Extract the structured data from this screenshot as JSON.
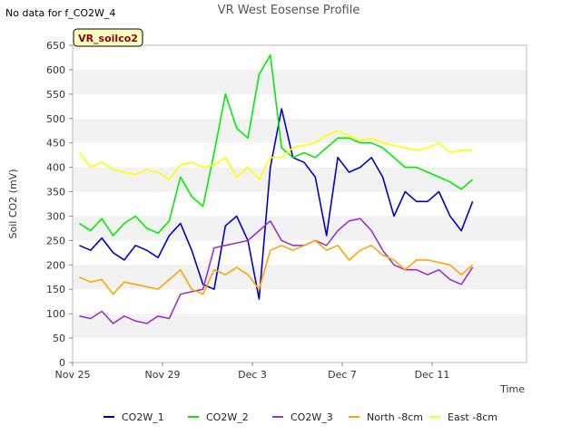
{
  "header": {
    "title": "VR West Eosense Profile",
    "note": "No data for f_CO2W_4",
    "tag": "VR_soilco2"
  },
  "chart_data": {
    "type": "line",
    "title": "VR West Eosense Profile",
    "xlabel": "Time",
    "ylabel": "Soil CO2 (mV)",
    "xlim": [
      0,
      20.2
    ],
    "ylim": [
      0,
      650
    ],
    "x_ticks": [
      {
        "label": "Nov 25",
        "day": 0
      },
      {
        "label": "Nov 29",
        "day": 4
      },
      {
        "label": "Dec 3",
        "day": 8
      },
      {
        "label": "Dec 7",
        "day": 12
      },
      {
        "label": "Dec 11",
        "day": 16
      }
    ],
    "y_ticks": [
      0,
      50,
      100,
      150,
      200,
      250,
      300,
      350,
      400,
      450,
      500,
      550,
      600,
      650
    ],
    "grid": "horizontal banded",
    "legend_position": "bottom",
    "x": [
      0.3,
      0.8,
      1.3,
      1.8,
      2.3,
      2.8,
      3.3,
      3.8,
      4.3,
      4.8,
      5.3,
      5.8,
      6.3,
      6.8,
      7.3,
      7.8,
      8.3,
      8.8,
      9.3,
      9.8,
      10.3,
      10.8,
      11.3,
      11.8,
      12.3,
      12.8,
      13.3,
      13.8,
      14.3,
      14.8,
      15.3,
      15.8,
      16.3,
      16.8,
      17.3,
      17.8
    ],
    "series": [
      {
        "name": "CO2W_1",
        "color": "#0000cc",
        "values": [
          240,
          230,
          255,
          225,
          210,
          240,
          230,
          215,
          260,
          285,
          230,
          160,
          150,
          280,
          300,
          250,
          130,
          400,
          520,
          420,
          410,
          380,
          260,
          420,
          390,
          400,
          420,
          380,
          300,
          350,
          330,
          330,
          350,
          300,
          270,
          330
        ]
      },
      {
        "name": "CO2W_2",
        "color": "#00ee00",
        "values": [
          285,
          270,
          295,
          260,
          285,
          300,
          275,
          265,
          290,
          380,
          340,
          320,
          430,
          550,
          480,
          460,
          590,
          630,
          440,
          420,
          430,
          420,
          440,
          460,
          460,
          450,
          450,
          440,
          420,
          400,
          400,
          390,
          380,
          370,
          355,
          375
        ]
      },
      {
        "name": "CO2W_3",
        "color": "#9933cc",
        "values": [
          95,
          90,
          105,
          80,
          95,
          85,
          80,
          95,
          90,
          140,
          145,
          150,
          235,
          240,
          245,
          250,
          270,
          290,
          250,
          240,
          240,
          250,
          240,
          270,
          290,
          295,
          270,
          230,
          200,
          190,
          190,
          180,
          190,
          170,
          160,
          195
        ]
      },
      {
        "name": "North -8cm",
        "color": "#ffa500",
        "values": [
          175,
          165,
          170,
          140,
          165,
          160,
          155,
          150,
          170,
          190,
          150,
          140,
          190,
          180,
          195,
          180,
          150,
          230,
          240,
          230,
          240,
          250,
          230,
          240,
          210,
          230,
          240,
          220,
          210,
          190,
          210,
          210,
          205,
          200,
          180,
          200
        ]
      },
      {
        "name": "East -8cm",
        "color": "#ffff00",
        "values": [
          430,
          400,
          410,
          395,
          390,
          385,
          395,
          390,
          375,
          405,
          410,
          400,
          405,
          420,
          380,
          400,
          375,
          420,
          420,
          440,
          445,
          450,
          465,
          475,
          465,
          455,
          460,
          450,
          445,
          440,
          435,
          440,
          450,
          430,
          435,
          435
        ]
      }
    ]
  }
}
